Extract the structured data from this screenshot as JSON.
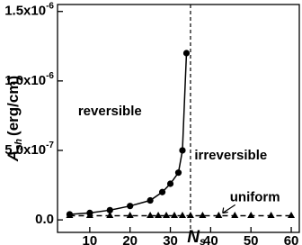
{
  "chart_data": {
    "type": "line",
    "x_label": {
      "text": "N",
      "sub": "s"
    },
    "y_label": {
      "text": "A",
      "sub": "sh",
      "unit": "(erg/cm)"
    },
    "xlim": [
      2,
      62
    ],
    "ylim": [
      -9e-08,
      1.55e-06
    ],
    "xticks": [
      10,
      20,
      30,
      40,
      50,
      60
    ],
    "yticks": [
      {
        "value": 0,
        "label": "0.0"
      },
      {
        "value": 5e-07,
        "label": "5.0x10",
        "sup": "-7"
      },
      {
        "value": 1e-06,
        "label": "1.0x10",
        "sup": "-6"
      },
      {
        "value": 1.5e-06,
        "label": "1.5x10",
        "sup": "-6"
      }
    ],
    "vline": 35,
    "series": [
      {
        "marker": "circle",
        "dash": false,
        "color": "#000000",
        "x": [
          5,
          10,
          15,
          20,
          25,
          28,
          30,
          32,
          33,
          34
        ],
        "values": [
          4e-08,
          5e-08,
          7e-08,
          1e-07,
          1.4e-07,
          2e-07,
          2.6e-07,
          3.4e-07,
          5e-07,
          1.2e-06
        ]
      },
      {
        "marker": "triangle",
        "dash": true,
        "color": "#000000",
        "x": [
          5,
          10,
          15,
          20,
          25,
          27,
          29,
          31,
          33,
          35,
          38,
          42,
          46,
          50,
          55,
          60
        ],
        "values": [
          3e-08,
          3e-08,
          3e-08,
          3e-08,
          3e-08,
          3e-08,
          3e-08,
          3e-08,
          3e-08,
          3e-08,
          3e-08,
          3e-08,
          3e-08,
          3e-08,
          3e-08,
          3e-08
        ]
      }
    ],
    "annotations": [
      {
        "text": "reversible",
        "x": 15,
        "y": 7.8e-07
      },
      {
        "text": "irreversible",
        "x": 45,
        "y": 4.6e-07
      },
      {
        "text": "uniform",
        "x": 51,
        "y": 1.6e-07
      }
    ]
  }
}
